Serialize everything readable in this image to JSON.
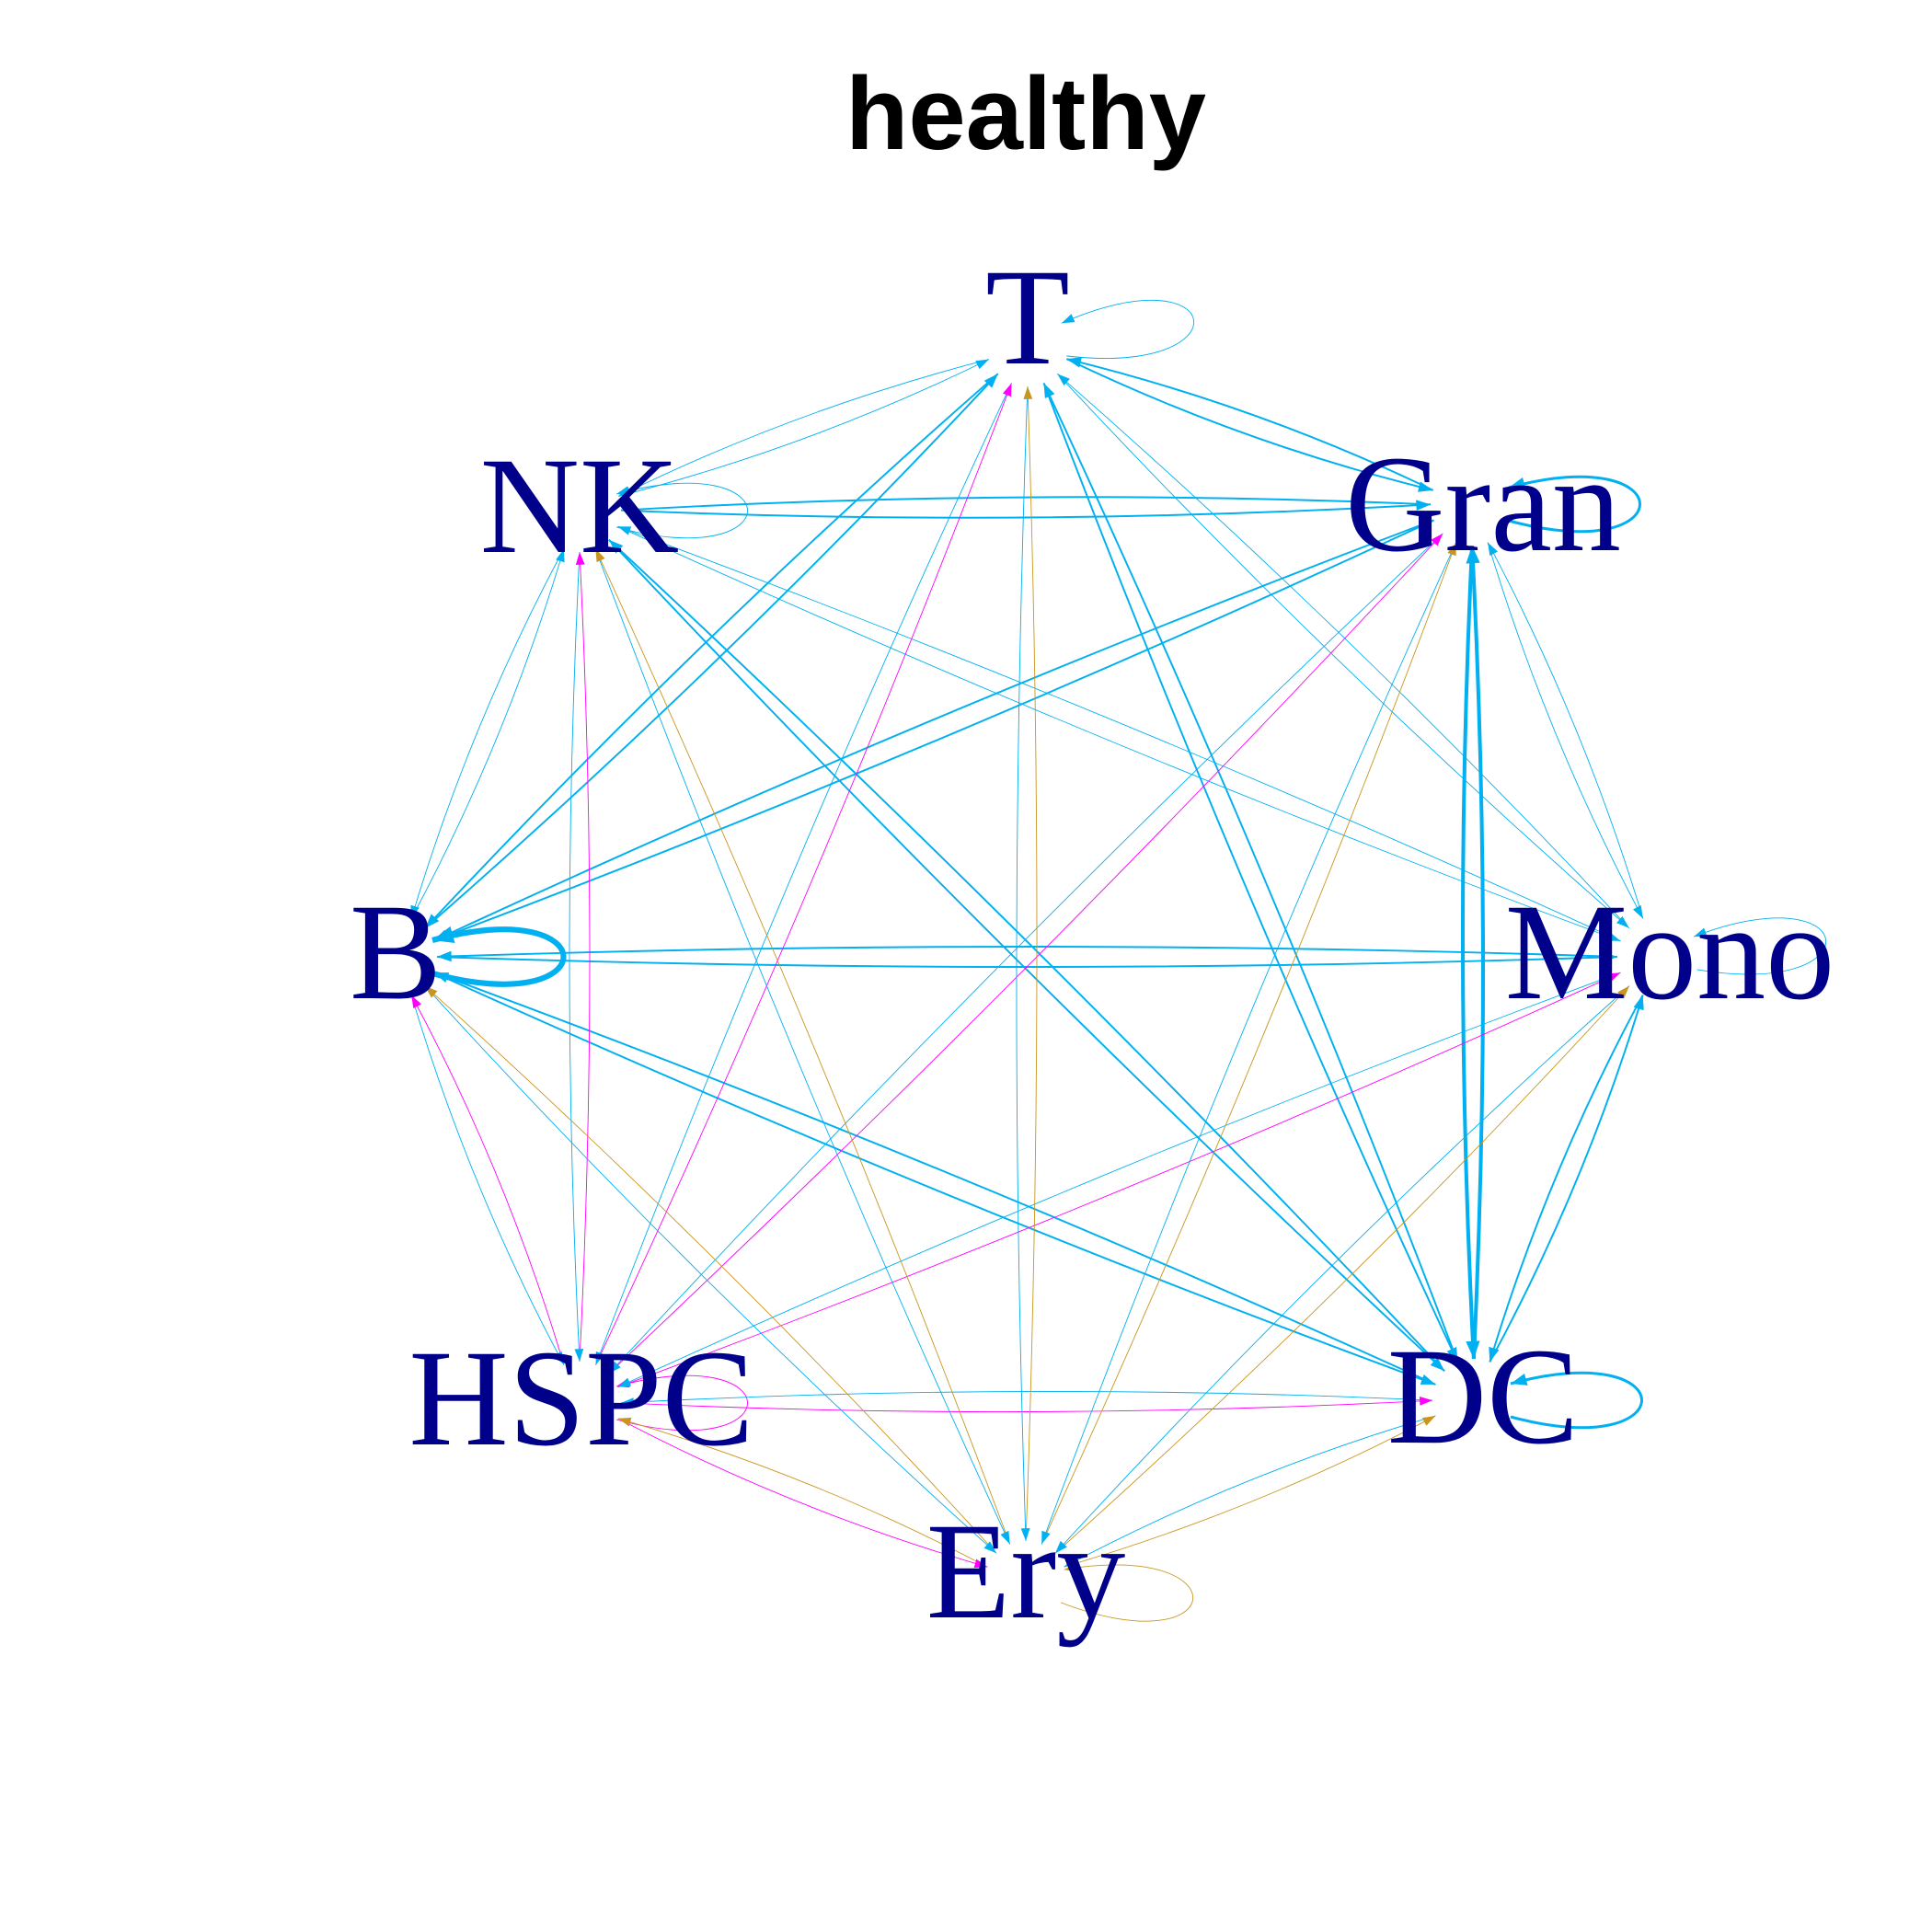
{
  "title": "healthy",
  "colors": {
    "label": "#00008B",
    "title": "#000000",
    "edge_from_blue_group": "#00B0F0",
    "edge_from_magenta_group": "#FF00FF",
    "edge_from_gold_group": "#C8961E"
  },
  "nodes": [
    {
      "id": "T",
      "label": "T",
      "color_group": "blue"
    },
    {
      "id": "Gran",
      "label": "Gran",
      "color_group": "blue"
    },
    {
      "id": "Mono",
      "label": "Mono",
      "color_group": "blue"
    },
    {
      "id": "DC",
      "label": "DC",
      "color_group": "blue"
    },
    {
      "id": "Ery",
      "label": "Ery",
      "color_group": "gold"
    },
    {
      "id": "HSPC",
      "label": "HSPC",
      "color_group": "magenta"
    },
    {
      "id": "B",
      "label": "B",
      "color_group": "blue"
    },
    {
      "id": "NK",
      "label": "NK",
      "color_group": "blue"
    }
  ],
  "edges": [
    {
      "source": "T",
      "target": "T",
      "weight": 1
    },
    {
      "source": "T",
      "target": "NK",
      "weight": 1
    },
    {
      "source": "T",
      "target": "Gran",
      "weight": 2
    },
    {
      "source": "T",
      "target": "B",
      "weight": 2
    },
    {
      "source": "T",
      "target": "Mono",
      "weight": 1
    },
    {
      "source": "T",
      "target": "DC",
      "weight": 2
    },
    {
      "source": "NK",
      "target": "NK",
      "weight": 1
    },
    {
      "source": "NK",
      "target": "T",
      "weight": 1
    },
    {
      "source": "NK",
      "target": "Gran",
      "weight": 2
    },
    {
      "source": "NK",
      "target": "B",
      "weight": 1
    },
    {
      "source": "NK",
      "target": "Mono",
      "weight": 1
    },
    {
      "source": "NK",
      "target": "DC",
      "weight": 2
    },
    {
      "source": "Gran",
      "target": "Gran",
      "weight": 3
    },
    {
      "source": "Gran",
      "target": "T",
      "weight": 2
    },
    {
      "source": "Gran",
      "target": "NK",
      "weight": 2
    },
    {
      "source": "Gran",
      "target": "B",
      "weight": 2
    },
    {
      "source": "Gran",
      "target": "Mono",
      "weight": 1
    },
    {
      "source": "Gran",
      "target": "DC",
      "weight": 4
    },
    {
      "source": "B",
      "target": "B",
      "weight": 6
    },
    {
      "source": "B",
      "target": "T",
      "weight": 2
    },
    {
      "source": "B",
      "target": "NK",
      "weight": 1
    },
    {
      "source": "B",
      "target": "Gran",
      "weight": 2
    },
    {
      "source": "B",
      "target": "Mono",
      "weight": 2
    },
    {
      "source": "B",
      "target": "DC",
      "weight": 2
    },
    {
      "source": "Mono",
      "target": "Mono",
      "weight": 1
    },
    {
      "source": "Mono",
      "target": "T",
      "weight": 1
    },
    {
      "source": "Mono",
      "target": "NK",
      "weight": 1
    },
    {
      "source": "Mono",
      "target": "Gran",
      "weight": 1
    },
    {
      "source": "Mono",
      "target": "B",
      "weight": 2
    },
    {
      "source": "Mono",
      "target": "DC",
      "weight": 2
    },
    {
      "source": "DC",
      "target": "DC",
      "weight": 3
    },
    {
      "source": "DC",
      "target": "T",
      "weight": 2
    },
    {
      "source": "DC",
      "target": "NK",
      "weight": 2
    },
    {
      "source": "DC",
      "target": "Gran",
      "weight": 4
    },
    {
      "source": "DC",
      "target": "B",
      "weight": 2
    },
    {
      "source": "DC",
      "target": "Mono",
      "weight": 2
    },
    {
      "source": "HSPC",
      "target": "HSPC",
      "weight": 1
    },
    {
      "source": "HSPC",
      "target": "T",
      "weight": 1
    },
    {
      "source": "HSPC",
      "target": "NK",
      "weight": 1
    },
    {
      "source": "HSPC",
      "target": "Gran",
      "weight": 1
    },
    {
      "source": "HSPC",
      "target": "B",
      "weight": 1
    },
    {
      "source": "HSPC",
      "target": "Mono",
      "weight": 1
    },
    {
      "source": "HSPC",
      "target": "DC",
      "weight": 1
    },
    {
      "source": "B",
      "target": "HSPC",
      "weight": 1
    },
    {
      "source": "NK",
      "target": "HSPC",
      "weight": 1
    },
    {
      "source": "T",
      "target": "HSPC",
      "weight": 1
    },
    {
      "source": "Gran",
      "target": "HSPC",
      "weight": 1
    },
    {
      "source": "Mono",
      "target": "HSPC",
      "weight": 1
    },
    {
      "source": "DC",
      "target": "HSPC",
      "weight": 1
    },
    {
      "source": "Ery",
      "target": "Ery",
      "weight": 1
    },
    {
      "source": "Ery",
      "target": "T",
      "weight": 1
    },
    {
      "source": "Ery",
      "target": "NK",
      "weight": 1
    },
    {
      "source": "Ery",
      "target": "Gran",
      "weight": 1
    },
    {
      "source": "Ery",
      "target": "B",
      "weight": 1
    },
    {
      "source": "Ery",
      "target": "Mono",
      "weight": 1
    },
    {
      "source": "Ery",
      "target": "DC",
      "weight": 1
    },
    {
      "source": "Ery",
      "target": "HSPC",
      "weight": 1
    },
    {
      "source": "T",
      "target": "Ery",
      "weight": 1
    },
    {
      "source": "NK",
      "target": "Ery",
      "weight": 1
    },
    {
      "source": "Gran",
      "target": "Ery",
      "weight": 1
    },
    {
      "source": "B",
      "target": "Ery",
      "weight": 1
    },
    {
      "source": "Mono",
      "target": "Ery",
      "weight": 1
    },
    {
      "source": "DC",
      "target": "Ery",
      "weight": 1
    },
    {
      "source": "HSPC",
      "target": "Ery",
      "weight": 1
    }
  ]
}
